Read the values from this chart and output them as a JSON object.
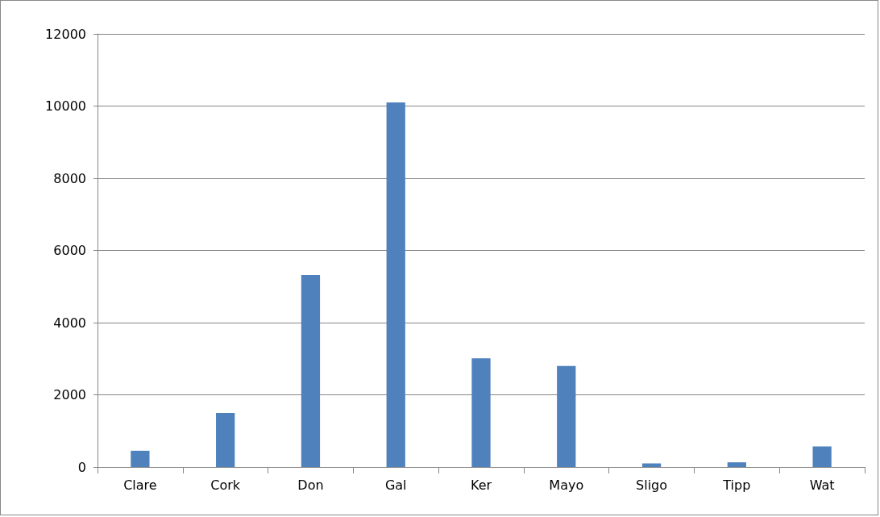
{
  "chart_data": {
    "type": "bar",
    "categories": [
      "Clare",
      "Cork",
      "Don",
      "Gal",
      "Ker",
      "Mayo",
      "Sligo",
      "Tipp",
      "Wat"
    ],
    "values": [
      450,
      1500,
      5320,
      10100,
      3010,
      2800,
      100,
      130,
      570
    ],
    "color": "#4f81bd",
    "ylim": [
      0,
      12000
    ],
    "yticks": [
      0,
      2000,
      4000,
      6000,
      8000,
      10000,
      12000
    ],
    "grid": "y"
  }
}
